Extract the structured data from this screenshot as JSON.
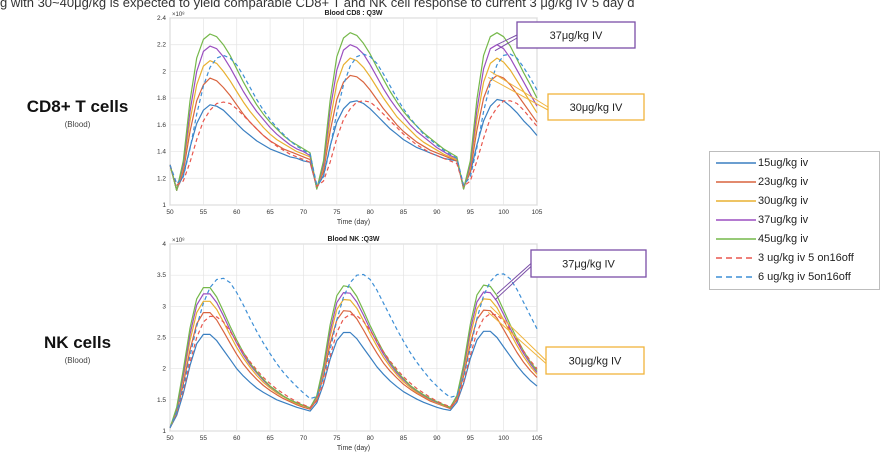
{
  "header": {
    "text": "g with 30~40μg/kg is expected to yield comparable CD8+ T and NK cell response to current 3 μg/kg IV 5 day d"
  },
  "row_labels": [
    {
      "main": "CD8+ T cells",
      "sub": "(Blood)"
    },
    {
      "main": "NK cells",
      "sub": "(Blood)"
    }
  ],
  "legend": {
    "placement": "right",
    "items": [
      {
        "label": "15ug/kg iv",
        "color": "#3a7fc1",
        "dash": false
      },
      {
        "label": "23ug/kg iv",
        "color": "#d9643f",
        "dash": false
      },
      {
        "label": "30ug/kg iv",
        "color": "#e8b030",
        "dash": false
      },
      {
        "label": "37ug/kg iv",
        "color": "#9b4fc0",
        "dash": false
      },
      {
        "label": "45ug/kg iv",
        "color": "#75b84a",
        "dash": false
      },
      {
        "label": "3 ug/kg iv 5 on16off",
        "color": "#e8574e",
        "dash": true
      },
      {
        "label": "6 ug/kg iv 5on16off",
        "color": "#3d8fd6",
        "dash": true
      }
    ]
  },
  "chart_data": [
    {
      "type": "line",
      "title": "Blood CD8 : Q3W",
      "xlabel": "Time (day)",
      "ylabel": "",
      "y_exponent": "×10⁸",
      "xlim": [
        50,
        105
      ],
      "ylim": [
        1,
        2.4
      ],
      "xticks": [
        50,
        55,
        60,
        65,
        70,
        75,
        80,
        85,
        90,
        95,
        100,
        105
      ],
      "yticks": [
        1,
        1.2,
        1.4,
        1.6,
        1.8,
        2,
        2.2,
        2.4
      ],
      "grid": true,
      "x": [
        50,
        51,
        52,
        53,
        54,
        55,
        56,
        57,
        58,
        59,
        60,
        61,
        62,
        63,
        64,
        65,
        66,
        67,
        68,
        69,
        70,
        71,
        72,
        73,
        74,
        75,
        76,
        77,
        78,
        79,
        80,
        81,
        82,
        83,
        84,
        85,
        86,
        87,
        88,
        89,
        90,
        91,
        92,
        93,
        94,
        95,
        96,
        97,
        98,
        99,
        100,
        101,
        102,
        103,
        104,
        105
      ],
      "series": [
        {
          "name": "15ug/kg iv",
          "values": [
            1.3,
            1.12,
            1.22,
            1.43,
            1.61,
            1.71,
            1.75,
            1.74,
            1.71,
            1.66,
            1.61,
            1.56,
            1.52,
            1.48,
            1.45,
            1.42,
            1.4,
            1.38,
            1.36,
            1.35,
            1.33,
            1.32,
            1.13,
            1.22,
            1.44,
            1.62,
            1.72,
            1.77,
            1.78,
            1.76,
            1.72,
            1.67,
            1.62,
            1.57,
            1.53,
            1.49,
            1.46,
            1.43,
            1.41,
            1.39,
            1.37,
            1.35,
            1.34,
            1.33,
            1.14,
            1.24,
            1.45,
            1.63,
            1.74,
            1.79,
            1.78,
            1.74,
            1.69,
            1.63,
            1.58,
            1.52
          ]
        },
        {
          "name": "23ug/kg iv",
          "values": [
            1.3,
            1.11,
            1.25,
            1.55,
            1.78,
            1.9,
            1.95,
            1.93,
            1.88,
            1.82,
            1.75,
            1.68,
            1.62,
            1.57,
            1.52,
            1.48,
            1.45,
            1.42,
            1.4,
            1.38,
            1.36,
            1.34,
            1.13,
            1.25,
            1.55,
            1.79,
            1.92,
            1.97,
            1.96,
            1.92,
            1.86,
            1.79,
            1.72,
            1.66,
            1.6,
            1.55,
            1.51,
            1.47,
            1.44,
            1.41,
            1.39,
            1.37,
            1.35,
            1.33,
            1.13,
            1.25,
            1.56,
            1.8,
            1.93,
            1.97,
            1.95,
            1.9,
            1.83,
            1.76,
            1.69,
            1.62
          ]
        },
        {
          "name": "30ug/kg iv",
          "values": [
            1.3,
            1.11,
            1.28,
            1.63,
            1.9,
            2.04,
            2.08,
            2.06,
            2.0,
            1.93,
            1.85,
            1.77,
            1.7,
            1.64,
            1.58,
            1.53,
            1.49,
            1.46,
            1.43,
            1.4,
            1.38,
            1.36,
            1.12,
            1.28,
            1.63,
            1.91,
            2.05,
            2.1,
            2.08,
            2.03,
            1.96,
            1.88,
            1.8,
            1.73,
            1.66,
            1.61,
            1.56,
            1.51,
            1.47,
            1.44,
            1.41,
            1.38,
            1.36,
            1.34,
            1.12,
            1.28,
            1.64,
            1.92,
            2.06,
            2.1,
            2.07,
            2.01,
            1.93,
            1.85,
            1.77,
            1.69
          ]
        },
        {
          "name": "37ug/kg iv",
          "values": [
            1.3,
            1.11,
            1.3,
            1.7,
            2.0,
            2.15,
            2.19,
            2.17,
            2.11,
            2.03,
            1.94,
            1.85,
            1.77,
            1.7,
            1.64,
            1.58,
            1.53,
            1.49,
            1.45,
            1.42,
            1.4,
            1.37,
            1.12,
            1.3,
            1.71,
            2.01,
            2.16,
            2.2,
            2.18,
            2.13,
            2.05,
            1.96,
            1.87,
            1.79,
            1.72,
            1.66,
            1.6,
            1.55,
            1.51,
            1.47,
            1.43,
            1.4,
            1.37,
            1.35,
            1.12,
            1.3,
            1.71,
            2.02,
            2.17,
            2.2,
            2.17,
            2.1,
            2.01,
            1.92,
            1.83,
            1.74
          ]
        },
        {
          "name": "45ug/kg iv",
          "values": [
            1.3,
            1.11,
            1.33,
            1.78,
            2.1,
            2.24,
            2.28,
            2.26,
            2.2,
            2.12,
            2.02,
            1.92,
            1.83,
            1.75,
            1.68,
            1.62,
            1.57,
            1.52,
            1.48,
            1.45,
            1.42,
            1.39,
            1.12,
            1.33,
            1.78,
            2.11,
            2.25,
            2.29,
            2.27,
            2.21,
            2.13,
            2.03,
            1.94,
            1.85,
            1.77,
            1.7,
            1.64,
            1.59,
            1.54,
            1.5,
            1.46,
            1.42,
            1.39,
            1.36,
            1.12,
            1.33,
            1.79,
            2.12,
            2.26,
            2.29,
            2.26,
            2.19,
            2.09,
            1.99,
            1.9,
            1.8
          ]
        },
        {
          "name": "3 ug/kg iv 5 on16off",
          "values": [
            1.3,
            1.15,
            1.18,
            1.32,
            1.49,
            1.63,
            1.71,
            1.76,
            1.77,
            1.76,
            1.72,
            1.67,
            1.62,
            1.57,
            1.52,
            1.48,
            1.44,
            1.41,
            1.38,
            1.36,
            1.34,
            1.32,
            1.14,
            1.18,
            1.32,
            1.5,
            1.64,
            1.72,
            1.77,
            1.78,
            1.77,
            1.73,
            1.68,
            1.63,
            1.58,
            1.53,
            1.49,
            1.45,
            1.42,
            1.39,
            1.37,
            1.35,
            1.33,
            1.31,
            1.14,
            1.18,
            1.33,
            1.5,
            1.65,
            1.73,
            1.78,
            1.78,
            1.76,
            1.71,
            1.65,
            1.59
          ]
        },
        {
          "name": "6 ug/kg iv 5on16off",
          "values": [
            1.3,
            1.16,
            1.21,
            1.42,
            1.68,
            1.89,
            2.03,
            2.1,
            2.12,
            2.1,
            2.05,
            1.97,
            1.88,
            1.79,
            1.71,
            1.64,
            1.58,
            1.53,
            1.48,
            1.44,
            1.41,
            1.38,
            1.15,
            1.21,
            1.43,
            1.69,
            1.9,
            2.04,
            2.11,
            2.13,
            2.11,
            2.06,
            1.98,
            1.89,
            1.8,
            1.72,
            1.65,
            1.59,
            1.53,
            1.49,
            1.45,
            1.41,
            1.38,
            1.35,
            1.15,
            1.21,
            1.43,
            1.7,
            1.91,
            2.05,
            2.12,
            2.13,
            2.1,
            2.03,
            1.95,
            1.86
          ]
        }
      ],
      "annotations": [
        {
          "text": "37μg/kg IV",
          "border": "#7b4fa8",
          "target_series": "37ug/kg iv",
          "target_x": 99,
          "target_y": 2.2
        },
        {
          "text": "30μg/kg IV",
          "border": "#f0b43c",
          "target_series": "30ug/kg iv",
          "target_x": 98,
          "target_y": 2.0
        }
      ]
    },
    {
      "type": "line",
      "title": "Blood NK :Q3W",
      "xlabel": "Time (day)",
      "ylabel": "",
      "y_exponent": "×10⁸",
      "xlim": [
        50,
        105
      ],
      "ylim": [
        1,
        4
      ],
      "xticks": [
        50,
        55,
        60,
        65,
        70,
        75,
        80,
        85,
        90,
        95,
        100,
        105
      ],
      "yticks": [
        1,
        1.5,
        2,
        2.5,
        3,
        3.5,
        4
      ],
      "grid": true,
      "x": [
        50,
        51,
        52,
        53,
        54,
        55,
        56,
        57,
        58,
        59,
        60,
        61,
        62,
        63,
        64,
        65,
        66,
        67,
        68,
        69,
        70,
        71,
        72,
        73,
        74,
        75,
        76,
        77,
        78,
        79,
        80,
        81,
        82,
        83,
        84,
        85,
        86,
        87,
        88,
        89,
        90,
        91,
        92,
        93,
        94,
        95,
        96,
        97,
        98,
        99,
        100,
        101,
        102,
        103,
        104,
        105
      ],
      "series": [
        {
          "name": "15ug/kg iv",
          "values": [
            1.05,
            1.25,
            1.6,
            2.05,
            2.4,
            2.55,
            2.55,
            2.45,
            2.3,
            2.15,
            2.0,
            1.88,
            1.78,
            1.69,
            1.62,
            1.56,
            1.5,
            1.46,
            1.42,
            1.38,
            1.35,
            1.32,
            1.45,
            1.75,
            2.15,
            2.45,
            2.58,
            2.58,
            2.48,
            2.33,
            2.18,
            2.03,
            1.91,
            1.8,
            1.71,
            1.63,
            1.57,
            1.51,
            1.46,
            1.42,
            1.38,
            1.35,
            1.33,
            1.46,
            1.76,
            2.16,
            2.46,
            2.6,
            2.6,
            2.5,
            2.35,
            2.2,
            2.05,
            1.92,
            1.81,
            1.72
          ]
        },
        {
          "name": "23ug/kg iv",
          "values": [
            1.05,
            1.3,
            1.75,
            2.3,
            2.72,
            2.9,
            2.9,
            2.78,
            2.6,
            2.41,
            2.23,
            2.07,
            1.94,
            1.83,
            1.73,
            1.65,
            1.58,
            1.52,
            1.47,
            1.42,
            1.38,
            1.35,
            1.5,
            1.88,
            2.4,
            2.78,
            2.93,
            2.92,
            2.8,
            2.62,
            2.43,
            2.25,
            2.09,
            1.96,
            1.85,
            1.75,
            1.67,
            1.6,
            1.54,
            1.48,
            1.44,
            1.4,
            1.36,
            1.5,
            1.88,
            2.4,
            2.79,
            2.94,
            2.93,
            2.81,
            2.63,
            2.44,
            2.26,
            2.1,
            1.97,
            1.86
          ]
        },
        {
          "name": "30ug/kg iv",
          "values": [
            1.05,
            1.33,
            1.85,
            2.45,
            2.9,
            3.08,
            3.08,
            2.95,
            2.75,
            2.54,
            2.34,
            2.17,
            2.02,
            1.89,
            1.78,
            1.69,
            1.61,
            1.55,
            1.49,
            1.44,
            1.4,
            1.37,
            1.53,
            1.95,
            2.52,
            2.95,
            3.11,
            3.1,
            2.97,
            2.77,
            2.56,
            2.36,
            2.18,
            2.03,
            1.9,
            1.79,
            1.7,
            1.62,
            1.56,
            1.5,
            1.45,
            1.41,
            1.38,
            1.53,
            1.96,
            2.53,
            2.96,
            3.12,
            3.11,
            2.98,
            2.78,
            2.57,
            2.37,
            2.19,
            2.04,
            1.91
          ]
        },
        {
          "name": "37ug/kg iv",
          "values": [
            1.05,
            1.35,
            1.9,
            2.55,
            3.02,
            3.2,
            3.2,
            3.06,
            2.85,
            2.62,
            2.41,
            2.22,
            2.06,
            1.93,
            1.81,
            1.71,
            1.63,
            1.56,
            1.5,
            1.45,
            1.41,
            1.37,
            1.55,
            2.0,
            2.6,
            3.06,
            3.22,
            3.21,
            3.07,
            2.86,
            2.63,
            2.42,
            2.23,
            2.07,
            1.93,
            1.82,
            1.72,
            1.64,
            1.57,
            1.51,
            1.46,
            1.42,
            1.38,
            1.55,
            2.01,
            2.62,
            3.07,
            3.23,
            3.22,
            3.08,
            2.87,
            2.64,
            2.43,
            2.24,
            2.08,
            1.94
          ]
        },
        {
          "name": "45ug/kg iv",
          "values": [
            1.05,
            1.38,
            1.98,
            2.65,
            3.12,
            3.3,
            3.3,
            3.15,
            2.92,
            2.68,
            2.46,
            2.26,
            2.09,
            1.95,
            1.83,
            1.72,
            1.64,
            1.56,
            1.5,
            1.45,
            1.41,
            1.37,
            1.57,
            2.05,
            2.7,
            3.17,
            3.33,
            3.31,
            3.16,
            2.93,
            2.69,
            2.47,
            2.27,
            2.1,
            1.96,
            1.84,
            1.73,
            1.65,
            1.58,
            1.52,
            1.47,
            1.42,
            1.38,
            1.57,
            2.06,
            2.71,
            3.18,
            3.34,
            3.32,
            3.17,
            2.94,
            2.7,
            2.48,
            2.28,
            2.11,
            1.97
          ]
        },
        {
          "name": "3 ug/kg iv 5 on16off",
          "values": [
            1.05,
            1.28,
            1.65,
            2.1,
            2.5,
            2.75,
            2.84,
            2.83,
            2.75,
            2.6,
            2.43,
            2.26,
            2.11,
            1.98,
            1.86,
            1.76,
            1.67,
            1.6,
            1.53,
            1.47,
            1.42,
            1.38,
            1.48,
            1.78,
            2.2,
            2.58,
            2.8,
            2.87,
            2.85,
            2.76,
            2.61,
            2.44,
            2.27,
            2.12,
            1.99,
            1.87,
            1.77,
            1.68,
            1.61,
            1.54,
            1.48,
            1.43,
            1.39,
            1.49,
            1.79,
            2.21,
            2.59,
            2.81,
            2.88,
            2.86,
            2.77,
            2.62,
            2.45,
            2.28,
            2.13,
            2.0
          ]
        },
        {
          "name": "6 ug/kg iv 5on16off",
          "values": [
            1.05,
            1.3,
            1.7,
            2.2,
            2.68,
            3.05,
            3.3,
            3.43,
            3.45,
            3.38,
            3.22,
            3.02,
            2.8,
            2.6,
            2.41,
            2.24,
            2.08,
            1.94,
            1.82,
            1.71,
            1.61,
            1.52,
            1.55,
            1.85,
            2.3,
            2.78,
            3.15,
            3.38,
            3.5,
            3.51,
            3.43,
            3.26,
            3.05,
            2.84,
            2.63,
            2.44,
            2.26,
            2.1,
            1.96,
            1.83,
            1.72,
            1.62,
            1.54,
            1.57,
            1.87,
            2.32,
            2.8,
            3.17,
            3.4,
            3.51,
            3.52,
            3.44,
            3.27,
            3.06,
            2.85,
            2.64
          ]
        }
      ],
      "annotations": [
        {
          "text": "37μg/kg IV",
          "border": "#7b4fa8",
          "target_series": "37ug/kg iv",
          "target_x": 99,
          "target_y": 3.2
        },
        {
          "text": "30μg/kg IV",
          "border": "#f0b43c",
          "target_series": "30ug/kg iv",
          "target_x": 98,
          "target_y": 3.0
        }
      ]
    }
  ]
}
